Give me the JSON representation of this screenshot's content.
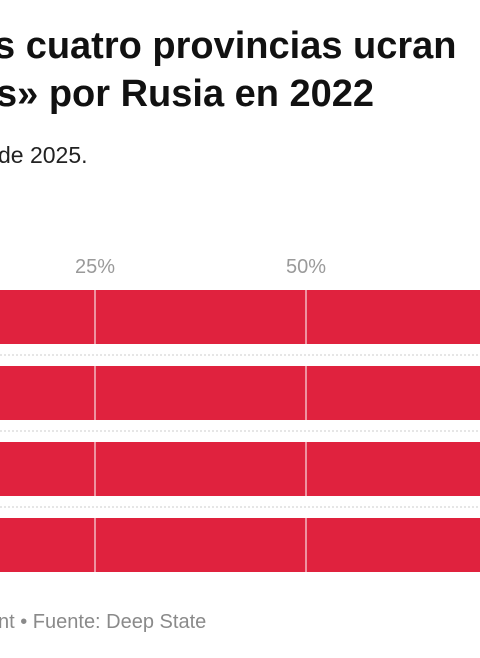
{
  "header": {
    "title_line1": "s cuatro provincias ucran",
    "title_line2": "s» por Rusia en 2022",
    "subtitle": "de 2025."
  },
  "footer": {
    "source": "nt • Fuente: Deep State"
  },
  "colors": {
    "bar": "#e0223e",
    "gridline": "#f2b8c0",
    "tick_label": "#9a9a9a",
    "separator": "#cccccc"
  },
  "chart_data": {
    "type": "bar",
    "orientation": "horizontal",
    "tick_labels": [
      "25%",
      "50%"
    ],
    "x_ticks": [
      25,
      50
    ],
    "categories": [
      "",
      "",
      "",
      ""
    ],
    "series": [
      {
        "values": [
          100,
          100,
          100,
          100
        ]
      }
    ],
    "grid": true
  }
}
